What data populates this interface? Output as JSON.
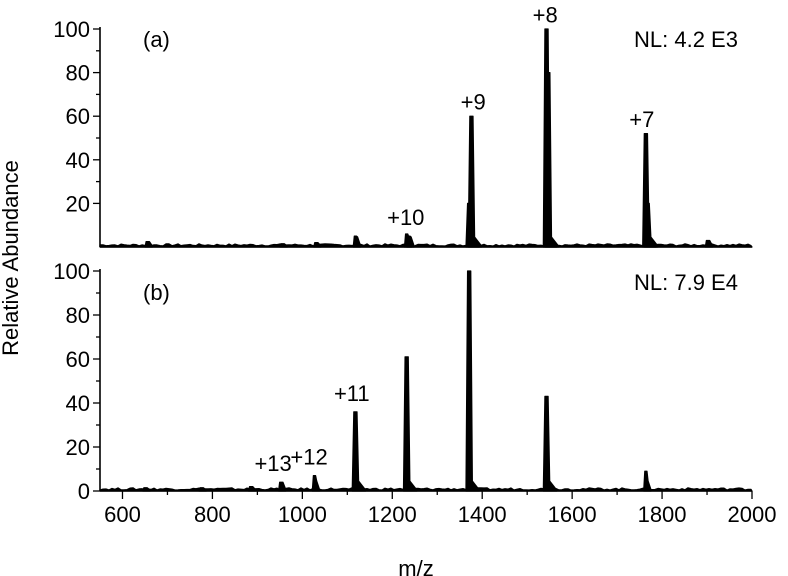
{
  "chart_data": [
    {
      "panel": "(a)",
      "type": "line",
      "normalization": "NL: 4.2 E3",
      "ylim": [
        0,
        100
      ],
      "yticks": [
        20,
        40,
        60,
        80,
        100
      ],
      "ytick_labels": [
        "20",
        "40",
        "60",
        "80",
        "100"
      ],
      "peaks": [
        {
          "mz": 655,
          "intensity": 2.5
        },
        {
          "mz": 955,
          "intensity": 1.5
        },
        {
          "mz": 1030,
          "intensity": 2
        },
        {
          "mz": 1118,
          "intensity": 5
        },
        {
          "mz": 1232,
          "intensity": 6
        },
        {
          "mz": 1237,
          "intensity": 5
        },
        {
          "mz": 1371,
          "intensity": 20
        },
        {
          "mz": 1376,
          "intensity": 60
        },
        {
          "mz": 1543,
          "intensity": 100
        },
        {
          "mz": 1547,
          "intensity": 80
        },
        {
          "mz": 1764,
          "intensity": 52
        },
        {
          "mz": 1768,
          "intensity": 20
        },
        {
          "mz": 1901,
          "intensity": 3
        }
      ],
      "annotations": [
        {
          "text": "+10",
          "mz": 1230,
          "intensity": 10
        },
        {
          "text": "+9",
          "mz": 1380,
          "intensity": 63
        },
        {
          "text": "+8",
          "mz": 1540,
          "intensity": 103
        },
        {
          "text": "+7",
          "mz": 1755,
          "intensity": 55
        }
      ]
    },
    {
      "panel": "(b)",
      "type": "line",
      "normalization": "NL: 7.9 E4",
      "ylim": [
        0,
        100
      ],
      "yticks": [
        0,
        20,
        40,
        60,
        80,
        100
      ],
      "ytick_labels": [
        "0",
        "20",
        "40",
        "60",
        "80",
        "100"
      ],
      "peaks": [
        {
          "mz": 650,
          "intensity": 1.5
        },
        {
          "mz": 775,
          "intensity": 1.5
        },
        {
          "mz": 885,
          "intensity": 2
        },
        {
          "mz": 952,
          "intensity": 4
        },
        {
          "mz": 1027,
          "intensity": 7
        },
        {
          "mz": 1118,
          "intensity": 36
        },
        {
          "mz": 1232,
          "intensity": 61
        },
        {
          "mz": 1371,
          "intensity": 100
        },
        {
          "mz": 1543,
          "intensity": 43
        },
        {
          "mz": 1764,
          "intensity": 9
        }
      ],
      "annotations": [
        {
          "text": "+13",
          "mz": 935,
          "intensity": 9
        },
        {
          "text": "+12",
          "mz": 1015,
          "intensity": 12
        },
        {
          "text": "+11",
          "mz": 1110,
          "intensity": 41
        }
      ]
    }
  ],
  "x_axis": {
    "label": "m/z",
    "xlim": [
      550,
      2000
    ],
    "ticks": [
      600,
      800,
      1000,
      1200,
      1400,
      1600,
      1800,
      2000
    ],
    "tick_labels": [
      "600",
      "800",
      "1000",
      "1200",
      "1400",
      "1600",
      "1800",
      "2000"
    ]
  },
  "y_axis": {
    "label": "Relative Abundance"
  }
}
